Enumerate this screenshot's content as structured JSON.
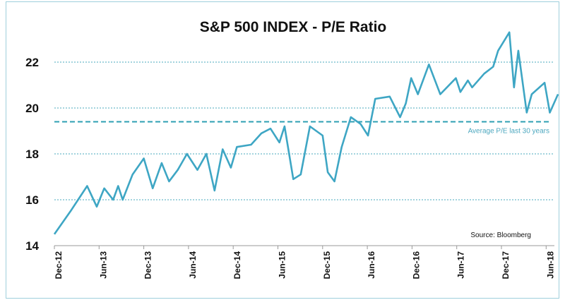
{
  "chart_data": {
    "type": "line",
    "title": "S&P 500 INDEX - P/E Ratio",
    "xlabel": "",
    "ylabel": "",
    "ylim": [
      14,
      23.6
    ],
    "yticks": [
      14,
      16,
      18,
      20,
      22
    ],
    "xrange": [
      "2012-12-01",
      "2018-08-01"
    ],
    "xticks": [
      {
        "date": "2012-12-01",
        "label": "Dec-12"
      },
      {
        "date": "2013-06-01",
        "label": "Jun-13"
      },
      {
        "date": "2013-12-01",
        "label": "Dec-13"
      },
      {
        "date": "2014-06-01",
        "label": "Jun-14"
      },
      {
        "date": "2014-12-01",
        "label": "Dec-14"
      },
      {
        "date": "2015-06-01",
        "label": "Jun-15"
      },
      {
        "date": "2015-12-01",
        "label": "Dec-15"
      },
      {
        "date": "2016-06-01",
        "label": "Jun-16"
      },
      {
        "date": "2016-12-01",
        "label": "Dec-16"
      },
      {
        "date": "2017-06-01",
        "label": "Jun-17"
      },
      {
        "date": "2017-12-01",
        "label": "Dec-17"
      },
      {
        "date": "2018-06-01",
        "label": "Jun-18"
      }
    ],
    "grid": "horizontal dotted",
    "line_color": "#3ea6c4",
    "grid_color": "#4aa9bd",
    "series": [
      {
        "x": [
          "2012-12-01",
          "2013-02-06",
          "2013-04-13",
          "2013-05-22",
          "2013-06-22",
          "2013-07-28",
          "2013-08-18",
          "2013-09-06",
          "2013-10-16",
          "2013-12-01",
          "2014-01-07",
          "2014-02-13",
          "2014-03-13",
          "2014-04-18",
          "2014-05-25",
          "2014-07-07",
          "2014-08-13",
          "2014-09-16",
          "2014-10-19",
          "2014-11-22",
          "2014-12-16",
          "2015-02-13",
          "2015-03-25",
          "2015-05-01",
          "2015-06-07",
          "2015-06-28",
          "2015-08-03",
          "2015-09-03",
          "2015-10-10",
          "2015-12-01",
          "2015-12-22",
          "2016-01-19",
          "2016-02-18",
          "2016-03-25",
          "2016-05-04",
          "2016-06-04",
          "2016-07-03",
          "2016-09-01",
          "2016-10-13",
          "2016-11-06",
          "2016-11-28",
          "2016-12-25",
          "2017-02-09",
          "2017-03-25",
          "2017-05-28",
          "2017-06-16",
          "2017-07-16",
          "2017-08-03",
          "2017-09-22",
          "2017-10-28",
          "2017-11-18",
          "2018-01-03",
          "2018-01-22",
          "2018-02-09",
          "2018-03-13",
          "2018-04-03",
          "2018-05-25",
          "2018-06-16",
          "2018-07-19"
        ],
        "values": [
          14.5,
          15.5,
          16.6,
          15.7,
          16.5,
          16.0,
          16.6,
          16.0,
          17.1,
          17.8,
          16.5,
          17.6,
          16.8,
          17.3,
          18.0,
          17.3,
          18.0,
          16.4,
          18.2,
          17.4,
          18.3,
          18.4,
          18.9,
          19.1,
          18.5,
          19.2,
          16.9,
          17.1,
          19.2,
          18.8,
          17.2,
          16.8,
          18.3,
          19.6,
          19.3,
          18.8,
          20.4,
          20.5,
          19.6,
          20.2,
          21.3,
          20.6,
          21.9,
          20.6,
          21.3,
          20.7,
          21.2,
          20.9,
          21.5,
          21.8,
          22.5,
          23.3,
          20.9,
          22.5,
          19.8,
          20.6,
          21.1,
          19.8,
          20.6
        ]
      }
    ],
    "reference_line": {
      "value": 19.4,
      "label": "Average P/E last 30 years",
      "style": "dashed",
      "color": "#2e9fb3"
    },
    "annotations": [
      {
        "text": "Source: Bloomberg"
      }
    ]
  }
}
